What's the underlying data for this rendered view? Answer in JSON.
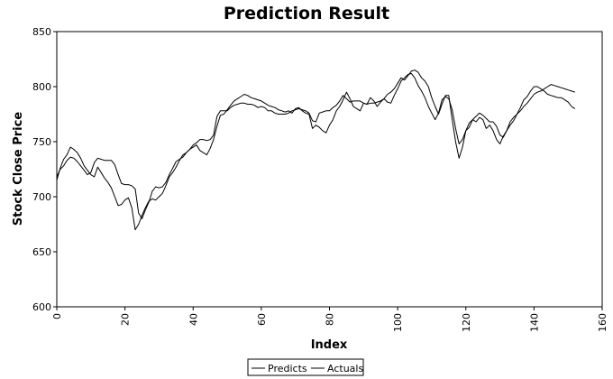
{
  "chart_data": {
    "type": "line",
    "title": "Prediction Result",
    "xlabel": "Index",
    "ylabel": "Stock Close Price",
    "xlim": [
      0,
      160
    ],
    "ylim": [
      600,
      850
    ],
    "xticks": [
      0,
      20,
      40,
      60,
      80,
      100,
      120,
      140,
      160
    ],
    "yticks": [
      600,
      650,
      700,
      750,
      800,
      850
    ],
    "grid": false,
    "legend_position": "bottom-center",
    "series": [
      {
        "name": "Predicts",
        "color": "#000000",
        "x": [
          0,
          1,
          2,
          3,
          4,
          5,
          6,
          7,
          8,
          9,
          10,
          11,
          12,
          13,
          14,
          15,
          16,
          17,
          18,
          19,
          20,
          21,
          22,
          23,
          24,
          25,
          26,
          27,
          28,
          29,
          30,
          31,
          32,
          33,
          34,
          35,
          36,
          37,
          38,
          39,
          40,
          41,
          42,
          43,
          44,
          45,
          46,
          47,
          48,
          49,
          50,
          51,
          52,
          53,
          54,
          55,
          56,
          57,
          58,
          59,
          60,
          61,
          62,
          63,
          64,
          65,
          66,
          67,
          68,
          69,
          70,
          71,
          72,
          73,
          74,
          75,
          76,
          77,
          78,
          79,
          80,
          81,
          82,
          83,
          84,
          85,
          86,
          87,
          88,
          89,
          90,
          91,
          92,
          93,
          94,
          95,
          96,
          97,
          98,
          99,
          100,
          101,
          102,
          103,
          104,
          105,
          106,
          107,
          108,
          109,
          110,
          111,
          112,
          113,
          114,
          115,
          116,
          117,
          118,
          119,
          120,
          121,
          122,
          123,
          124,
          125,
          126,
          127,
          128,
          129,
          130,
          131,
          132,
          133,
          134,
          135,
          136,
          137,
          138,
          139,
          140,
          141,
          142,
          143,
          144,
          145,
          146,
          147,
          148,
          149,
          150,
          151,
          152
        ],
        "values": [
          718,
          725,
          728,
          733,
          736,
          735,
          732,
          728,
          724,
          720,
          722,
          731,
          735,
          734,
          733,
          733,
          733,
          729,
          720,
          712,
          711,
          711,
          710,
          707,
          685,
          680,
          688,
          695,
          705,
          709,
          708,
          709,
          713,
          720,
          726,
          732,
          734,
          736,
          740,
          743,
          747,
          749,
          752,
          752,
          751,
          752,
          756,
          773,
          778,
          778,
          778,
          781,
          783,
          784,
          785,
          785,
          784,
          784,
          783,
          781,
          782,
          781,
          778,
          778,
          776,
          775,
          775,
          775,
          776,
          778,
          779,
          780,
          779,
          778,
          776,
          769,
          768,
          776,
          777,
          778,
          778,
          781,
          783,
          787,
          792,
          789,
          786,
          787,
          787,
          787,
          785,
          784,
          785,
          785,
          786,
          787,
          789,
          786,
          785,
          792,
          798,
          805,
          808,
          811,
          812,
          808,
          801,
          796,
          790,
          782,
          776,
          770,
          776,
          788,
          791,
          789,
          779,
          762,
          748,
          752,
          760,
          763,
          770,
          773,
          776,
          774,
          771,
          768,
          768,
          764,
          756,
          754,
          760,
          765,
          769,
          775,
          781,
          788,
          791,
          796,
          800,
          800,
          798,
          796,
          793,
          792,
          791,
          790,
          790,
          788,
          786,
          782,
          780
        ]
      },
      {
        "name": "Actuals",
        "color": "#000000",
        "x": [
          0,
          1,
          2,
          3,
          4,
          5,
          6,
          7,
          8,
          9,
          10,
          11,
          12,
          13,
          14,
          15,
          16,
          17,
          18,
          19,
          20,
          21,
          22,
          23,
          24,
          25,
          26,
          27,
          28,
          29,
          30,
          31,
          32,
          33,
          34,
          35,
          36,
          37,
          38,
          39,
          40,
          41,
          42,
          43,
          44,
          45,
          46,
          47,
          48,
          49,
          50,
          51,
          52,
          53,
          54,
          55,
          56,
          57,
          58,
          59,
          60,
          61,
          62,
          63,
          64,
          65,
          66,
          67,
          68,
          69,
          70,
          71,
          72,
          73,
          74,
          75,
          76,
          77,
          78,
          79,
          80,
          81,
          82,
          83,
          84,
          85,
          86,
          87,
          88,
          89,
          90,
          91,
          92,
          93,
          94,
          95,
          96,
          97,
          98,
          99,
          100,
          101,
          102,
          103,
          104,
          105,
          106,
          107,
          108,
          109,
          110,
          111,
          112,
          113,
          114,
          115,
          116,
          117,
          118,
          119,
          120,
          121,
          122,
          123,
          124,
          125,
          126,
          127,
          128,
          129,
          130,
          131,
          132,
          133,
          134,
          135,
          136,
          137,
          138,
          139,
          140,
          141,
          142,
          143,
          144,
          145,
          146,
          147,
          148,
          149,
          150,
          151,
          152
        ],
        "values": [
          715,
          726,
          734,
          738,
          745,
          743,
          740,
          735,
          728,
          724,
          720,
          718,
          727,
          722,
          717,
          713,
          708,
          700,
          692,
          693,
          697,
          699,
          690,
          670,
          675,
          683,
          690,
          696,
          698,
          697,
          700,
          703,
          710,
          718,
          722,
          727,
          733,
          738,
          740,
          743,
          745,
          747,
          742,
          740,
          738,
          744,
          752,
          764,
          774,
          775,
          779,
          783,
          787,
          789,
          791,
          793,
          792,
          790,
          789,
          788,
          787,
          785,
          783,
          782,
          781,
          779,
          778,
          777,
          778,
          776,
          780,
          781,
          778,
          776,
          775,
          762,
          765,
          763,
          760,
          758,
          765,
          770,
          778,
          782,
          788,
          795,
          789,
          782,
          780,
          778,
          785,
          784,
          790,
          787,
          782,
          786,
          789,
          793,
          795,
          798,
          803,
          808,
          806,
          810,
          814,
          815,
          813,
          808,
          805,
          800,
          790,
          782,
          775,
          784,
          792,
          792,
          770,
          750,
          735,
          745,
          760,
          767,
          770,
          768,
          772,
          770,
          762,
          765,
          760,
          752,
          748,
          755,
          760,
          768,
          772,
          775,
          778,
          782,
          785,
          789,
          793,
          795,
          796,
          798,
          800,
          802,
          801,
          800,
          799,
          798,
          797,
          796,
          795
        ]
      }
    ]
  }
}
